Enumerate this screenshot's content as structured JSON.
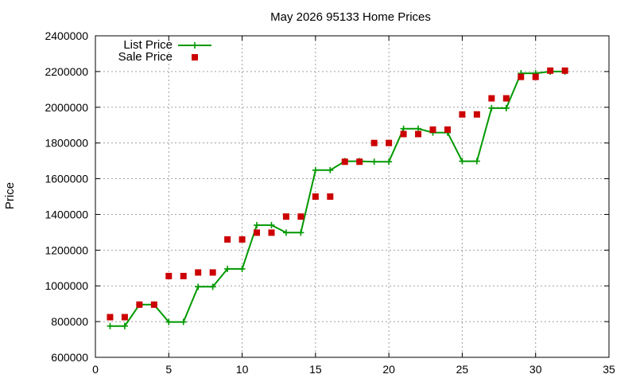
{
  "chart_data": {
    "type": "line",
    "title": "May 2026 95133 Home Prices",
    "xlabel": "",
    "ylabel": "Price",
    "xlim": [
      0,
      35
    ],
    "ylim": [
      600000,
      2400000
    ],
    "x_ticks": [
      "0",
      "5",
      "10",
      "15",
      "20",
      "25",
      "30",
      "35"
    ],
    "y_ticks": [
      "600000",
      "800000",
      "1000000",
      "1200000",
      "1400000",
      "1600000",
      "1800000",
      "2000000",
      "2200000",
      "2400000"
    ],
    "grid": true,
    "legend_position": "top-left",
    "series": [
      {
        "name": "List Price",
        "style": "line-with-plus-markers",
        "color": "#009900",
        "x": [
          1,
          2,
          3,
          4,
          5,
          6,
          7,
          8,
          9,
          10,
          11,
          12,
          13,
          14,
          15,
          16,
          17,
          18,
          19,
          20,
          21,
          22,
          23,
          24,
          25,
          26,
          27,
          28,
          29,
          30,
          31,
          32
        ],
        "y": [
          775000,
          775000,
          895000,
          895000,
          798000,
          798000,
          995000,
          995000,
          1095000,
          1095000,
          1340000,
          1340000,
          1298000,
          1298000,
          1648000,
          1648000,
          1698000,
          1698000,
          1695000,
          1695000,
          1880000,
          1880000,
          1858000,
          1858000,
          1698000,
          1698000,
          1995000,
          1995000,
          2190000,
          2190000,
          2200000,
          2200000
        ]
      },
      {
        "name": "Sale Price",
        "style": "square-markers",
        "color": "#cc0000",
        "x": [
          1,
          2,
          3,
          4,
          5,
          6,
          7,
          8,
          9,
          10,
          11,
          12,
          13,
          14,
          15,
          16,
          17,
          18,
          19,
          20,
          21,
          22,
          23,
          24,
          25,
          26,
          27,
          28,
          29,
          30,
          31,
          32
        ],
        "y": [
          825000,
          825000,
          895000,
          895000,
          1055000,
          1055000,
          1075000,
          1075000,
          1260000,
          1260000,
          1298000,
          1298000,
          1388000,
          1388000,
          1500000,
          1500000,
          1695000,
          1695000,
          1800000,
          1800000,
          1850000,
          1850000,
          1875000,
          1875000,
          1960000,
          1960000,
          2050000,
          2050000,
          2170000,
          2170000,
          2205000,
          2205000
        ]
      }
    ]
  }
}
